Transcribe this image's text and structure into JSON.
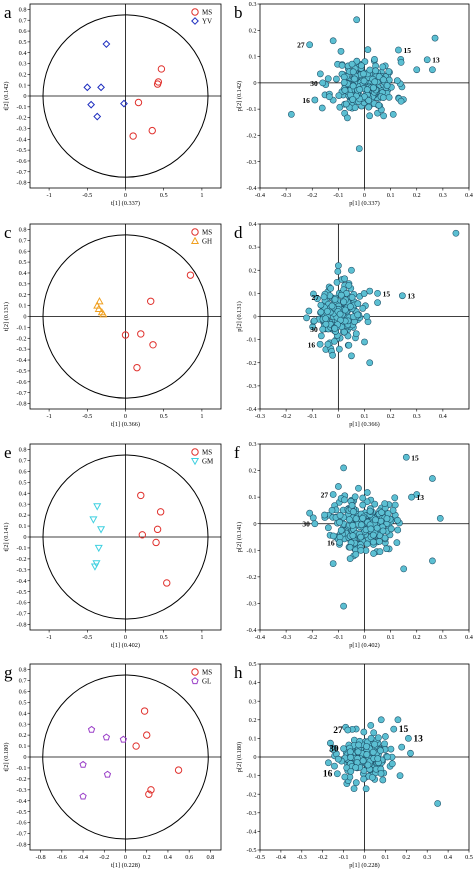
{
  "colors": {
    "MS": "#e0312d",
    "YV": "#1f2fbf",
    "GH": "#f0a020",
    "GM": "#3fd0e0",
    "GL": "#9a3fc8",
    "loading_fill": "#5bbfd2",
    "loading_edge": "#1d4e66"
  },
  "chart_data": [
    {
      "id": "a",
      "type": "scatter",
      "panel_letter": "a",
      "xlabel": "t[1] (0.337)",
      "ylabel": "t[2] (0.142)",
      "xlim": [
        -1.25,
        1.25
      ],
      "ylim": [
        -0.85,
        0.85
      ],
      "xticks": [
        -1,
        -0.5,
        0,
        0.5,
        1
      ],
      "xtick_labels": [
        "-1",
        "-0.5",
        "0",
        "0.5",
        "1"
      ],
      "yticks": [
        -0.8,
        -0.7,
        -0.6,
        -0.5,
        -0.4,
        -0.3,
        -0.2,
        -0.1,
        0,
        0.1,
        0.2,
        0.3,
        0.4,
        0.5,
        0.6,
        0.7,
        0.8
      ],
      "ytick_labels": [
        "-0.8",
        "-0.7",
        "-0.6",
        "-0.5",
        "-0.4",
        "-0.3",
        "-0.2",
        "-0.1",
        "0",
        "0.1",
        "0.2",
        "0.3",
        "0.4",
        "0.5",
        "0.6",
        "0.7",
        "0.8"
      ],
      "ellipse": {
        "rx": 1.08,
        "ry": 0.75
      },
      "legend": [
        {
          "name": "MS",
          "marker": "circle"
        },
        {
          "name": "YV",
          "marker": "diamond"
        }
      ],
      "series": [
        {
          "name": "MS",
          "marker": "circle",
          "x": [
            0.47,
            0.43,
            0.42,
            0.17,
            0.35,
            0.1
          ],
          "y": [
            0.25,
            0.13,
            0.11,
            -0.06,
            -0.32,
            -0.37
          ]
        },
        {
          "name": "YV",
          "marker": "diamond",
          "x": [
            -0.25,
            -0.5,
            -0.32,
            -0.45,
            -0.02,
            -0.37
          ],
          "y": [
            0.48,
            0.08,
            0.08,
            -0.08,
            -0.07,
            -0.19
          ]
        }
      ]
    },
    {
      "id": "b",
      "type": "scatter",
      "panel_letter": "b",
      "xlabel": "p[1] (0.337)",
      "ylabel": "p[2] (0.142)",
      "xlim": [
        -0.4,
        0.4
      ],
      "ylim": [
        -0.4,
        0.3
      ],
      "xticks": [
        -0.4,
        -0.3,
        -0.2,
        -0.1,
        0,
        0.1,
        0.2,
        0.3,
        0.4
      ],
      "xtick_labels": [
        "-0.4",
        "-0.3",
        "-0.2",
        "-0.1",
        "0",
        "0.1",
        "0.2",
        "0.3",
        "0.4"
      ],
      "yticks": [
        -0.4,
        -0.3,
        -0.2,
        -0.1,
        0,
        0.1,
        0.2,
        0.3
      ],
      "ytick_labels": [
        "-0.4",
        "-0.3",
        "-0.2",
        "-0.1",
        "0",
        "0.1",
        "0.2",
        "0.3"
      ],
      "cluster": {
        "cx": 0.0,
        "cy": -0.01,
        "sx": 0.06,
        "sy": 0.05,
        "n": 230,
        "seed": 11
      },
      "outliers": [
        [
          -0.03,
          0.24
        ],
        [
          0.27,
          0.17
        ],
        [
          0.26,
          0.05
        ],
        [
          -0.28,
          -0.12
        ],
        [
          -0.02,
          -0.25
        ],
        [
          0.2,
          0.05
        ],
        [
          -0.12,
          0.16
        ],
        [
          0.11,
          -0.12
        ],
        [
          0.14,
          -0.07
        ],
        [
          -0.09,
          0.12
        ]
      ],
      "labeled_points": [
        {
          "label": "27",
          "x": -0.21,
          "y": 0.145
        },
        {
          "label": "15",
          "x": 0.13,
          "y": 0.125
        },
        {
          "label": "13",
          "x": 0.24,
          "y": 0.088
        },
        {
          "label": "30",
          "x": -0.16,
          "y": 0.0
        },
        {
          "label": "16",
          "x": -0.19,
          "y": -0.065
        }
      ]
    },
    {
      "id": "c",
      "type": "scatter",
      "panel_letter": "c",
      "xlabel": "t[1] (0.366)",
      "ylabel": "t[2] (0.131)",
      "xlim": [
        -1.25,
        1.25
      ],
      "ylim": [
        -0.85,
        0.85
      ],
      "xticks": [
        -1,
        -0.5,
        0,
        0.5,
        1
      ],
      "xtick_labels": [
        "-1",
        "-0.5",
        "0",
        "0.5",
        "1"
      ],
      "yticks": [
        -0.8,
        -0.7,
        -0.6,
        -0.5,
        -0.4,
        -0.3,
        -0.2,
        -0.1,
        0,
        0.1,
        0.2,
        0.3,
        0.4,
        0.5,
        0.6,
        0.7,
        0.8
      ],
      "ytick_labels": [
        "-0.8",
        "-0.7",
        "-0.6",
        "-0.5",
        "-0.4",
        "-0.3",
        "-0.2",
        "-0.1",
        "0",
        "0.1",
        "0.2",
        "0.3",
        "0.4",
        "0.5",
        "0.6",
        "0.7",
        "0.8"
      ],
      "ellipse": {
        "rx": 1.08,
        "ry": 0.75
      },
      "legend": [
        {
          "name": "MS",
          "marker": "circle"
        },
        {
          "name": "GH",
          "marker": "triangle"
        }
      ],
      "series": [
        {
          "name": "MS",
          "marker": "circle",
          "x": [
            0.85,
            0.33,
            0.0,
            0.2,
            0.36,
            0.15
          ],
          "y": [
            0.38,
            0.14,
            -0.17,
            -0.16,
            -0.26,
            -0.47
          ]
        },
        {
          "name": "GH",
          "marker": "triangle",
          "x": [
            -0.34,
            -0.37,
            -0.35,
            -0.31,
            -0.29
          ],
          "y": [
            0.14,
            0.1,
            0.07,
            0.04,
            0.02
          ]
        }
      ]
    },
    {
      "id": "d",
      "type": "scatter",
      "panel_letter": "d",
      "xlabel": "p[1] (0.366)",
      "ylabel": "p[2] (0.131)",
      "xlim": [
        -0.3,
        0.5
      ],
      "ylim": [
        -0.4,
        0.4
      ],
      "xticks": [
        -0.3,
        -0.2,
        -0.1,
        0,
        0.1,
        0.2,
        0.3,
        0.4
      ],
      "xtick_labels": [
        "-0.3",
        "-0.2",
        "-0.1",
        "0",
        "0.1",
        "0.2",
        "0.3",
        "0.4"
      ],
      "yticks": [
        -0.4,
        -0.3,
        -0.2,
        -0.1,
        0,
        0.1,
        0.2,
        0.3,
        0.4
      ],
      "ytick_labels": [
        "-0.4",
        "-0.3",
        "-0.2",
        "-0.1",
        "0",
        "0.1",
        "0.2",
        "0.3",
        "0.4"
      ],
      "cluster": {
        "cx": 0.0,
        "cy": 0.01,
        "sx": 0.045,
        "sy": 0.06,
        "n": 190,
        "seed": 23
      },
      "outliers": [
        [
          0.45,
          0.36
        ],
        [
          0.0,
          0.22
        ],
        [
          0.05,
          0.2
        ],
        [
          0.12,
          0.11
        ],
        [
          0.1,
          -0.11
        ],
        [
          0.12,
          -0.2
        ],
        [
          -0.04,
          -0.12
        ],
        [
          0.05,
          -0.17
        ],
        [
          0.15,
          0.06
        ]
      ],
      "labeled_points": [
        {
          "label": "27",
          "x": -0.055,
          "y": 0.085
        },
        {
          "label": "15",
          "x": 0.15,
          "y": 0.1
        },
        {
          "label": "13",
          "x": 0.245,
          "y": 0.09
        },
        {
          "label": "30",
          "x": -0.06,
          "y": -0.055
        },
        {
          "label": "16",
          "x": -0.07,
          "y": -0.12
        }
      ]
    },
    {
      "id": "e",
      "type": "scatter",
      "panel_letter": "e",
      "xlabel": "t[1] (0.402)",
      "ylabel": "t[2] (0.141)",
      "xlim": [
        -1.25,
        1.25
      ],
      "ylim": [
        -0.85,
        0.85
      ],
      "xticks": [
        -1,
        -0.5,
        0,
        0.5,
        1
      ],
      "xtick_labels": [
        "-1",
        "-0.5",
        "0",
        "0.5",
        "1"
      ],
      "yticks": [
        -0.8,
        -0.7,
        -0.6,
        -0.5,
        -0.4,
        -0.3,
        -0.2,
        -0.1,
        0,
        0.1,
        0.2,
        0.3,
        0.4,
        0.5,
        0.6,
        0.7,
        0.8
      ],
      "ytick_labels": [
        "-0.8",
        "-0.7",
        "-0.6",
        "-0.5",
        "-0.4",
        "-0.3",
        "-0.2",
        "-0.1",
        "0",
        "0.1",
        "0.2",
        "0.3",
        "0.4",
        "0.5",
        "0.6",
        "0.7",
        "0.8"
      ],
      "ellipse": {
        "rx": 1.08,
        "ry": 0.75
      },
      "legend": [
        {
          "name": "MS",
          "marker": "circle"
        },
        {
          "name": "GM",
          "marker": "triangle-down"
        }
      ],
      "series": [
        {
          "name": "MS",
          "marker": "circle",
          "x": [
            0.2,
            0.46,
            0.42,
            0.22,
            0.4,
            0.54
          ],
          "y": [
            0.38,
            0.23,
            0.07,
            0.02,
            -0.05,
            -0.42
          ]
        },
        {
          "name": "GM",
          "marker": "triangle-down",
          "x": [
            -0.37,
            -0.42,
            -0.32,
            -0.35,
            -0.38,
            -0.4
          ],
          "y": [
            0.28,
            0.16,
            0.07,
            -0.1,
            -0.24,
            -0.27
          ]
        }
      ]
    },
    {
      "id": "f",
      "type": "scatter",
      "panel_letter": "f",
      "xlabel": "p[1] (0.402)",
      "ylabel": "p[2] (0.141)",
      "xlim": [
        -0.4,
        0.4
      ],
      "ylim": [
        -0.4,
        0.3
      ],
      "xticks": [
        -0.4,
        -0.3,
        -0.2,
        -0.1,
        0,
        0.1,
        0.2,
        0.3,
        0.4
      ],
      "xtick_labels": [
        "-0.4",
        "-0.3",
        "-0.2",
        "-0.1",
        "0",
        "0.1",
        "0.2",
        "0.3",
        "0.4"
      ],
      "yticks": [
        -0.4,
        -0.3,
        -0.2,
        -0.1,
        0,
        0.1,
        0.2,
        0.3
      ],
      "ytick_labels": [
        "-0.4",
        "-0.3",
        "-0.2",
        "-0.1",
        "0",
        "0.1",
        "0.2",
        "0.3"
      ],
      "cluster": {
        "cx": -0.01,
        "cy": 0.0,
        "sx": 0.06,
        "sy": 0.055,
        "n": 240,
        "seed": 37
      },
      "outliers": [
        [
          0.29,
          0.02
        ],
        [
          0.26,
          0.17
        ],
        [
          0.26,
          -0.14
        ],
        [
          -0.08,
          0.21
        ],
        [
          -0.08,
          -0.31
        ],
        [
          0.2,
          0.11
        ],
        [
          -0.21,
          0.04
        ],
        [
          -0.12,
          -0.15
        ],
        [
          0.15,
          -0.17
        ],
        [
          -0.1,
          0.14
        ]
      ],
      "labeled_points": [
        {
          "label": "15",
          "x": 0.16,
          "y": 0.25
        },
        {
          "label": "27",
          "x": -0.12,
          "y": 0.11
        },
        {
          "label": "13",
          "x": 0.18,
          "y": 0.1
        },
        {
          "label": "30",
          "x": -0.19,
          "y": 0.0
        },
        {
          "label": "16",
          "x": -0.095,
          "y": -0.07
        }
      ]
    },
    {
      "id": "g",
      "type": "scatter",
      "panel_letter": "g",
      "xlabel": "t[1] (0.228)",
      "ylabel": "t[2] (0.180)",
      "xlim": [
        -0.9,
        0.9
      ],
      "ylim": [
        -0.85,
        0.85
      ],
      "xticks": [
        -0.8,
        -0.6,
        -0.4,
        -0.2,
        0,
        0.2,
        0.4,
        0.6,
        0.8
      ],
      "xtick_labels": [
        "-0.8",
        "-0.6",
        "-0.4",
        "-0.2",
        "0",
        "0.2",
        "0.4",
        "0.6",
        "0.8"
      ],
      "yticks": [
        -0.8,
        -0.7,
        -0.6,
        -0.5,
        -0.4,
        -0.3,
        -0.2,
        -0.1,
        0,
        0.1,
        0.2,
        0.3,
        0.4,
        0.5,
        0.6,
        0.7,
        0.8
      ],
      "ytick_labels": [
        "-0.8",
        "-0.7",
        "-0.6",
        "-0.5",
        "-0.4",
        "-0.3",
        "-0.2",
        "-0.1",
        "0",
        "0.1",
        "0.2",
        "0.3",
        "0.4",
        "0.5",
        "0.6",
        "0.7",
        "0.8"
      ],
      "ellipse": {
        "rx": 0.78,
        "ry": 0.75
      },
      "legend": [
        {
          "name": "MS",
          "marker": "circle"
        },
        {
          "name": "GL",
          "marker": "pentagon"
        }
      ],
      "series": [
        {
          "name": "MS",
          "marker": "circle",
          "x": [
            0.18,
            0.2,
            0.1,
            0.5,
            0.24,
            0.22
          ],
          "y": [
            0.42,
            0.2,
            0.1,
            -0.12,
            -0.3,
            -0.34
          ]
        },
        {
          "name": "GL",
          "marker": "pentagon",
          "x": [
            -0.32,
            -0.18,
            -0.02,
            -0.4,
            -0.17,
            -0.4
          ],
          "y": [
            0.25,
            0.18,
            0.16,
            -0.07,
            -0.16,
            -0.36
          ]
        }
      ]
    },
    {
      "id": "h",
      "type": "scatter",
      "panel_letter": "h",
      "xlabel": "p[1] (0.228)",
      "ylabel": "p[2] (0.180)",
      "xlim": [
        -0.5,
        0.5
      ],
      "ylim": [
        -0.5,
        0.5
      ],
      "xticks": [
        -0.5,
        -0.4,
        -0.3,
        -0.2,
        -0.1,
        0,
        0.1,
        0.2,
        0.3,
        0.4,
        0.5
      ],
      "xtick_labels": [
        "-0.5",
        "-0.4",
        "-0.3",
        "-0.2",
        "-0.1",
        "0",
        "0.1",
        "0.2",
        "0.3",
        "0.4",
        "0.5"
      ],
      "yticks": [
        -0.5,
        -0.4,
        -0.3,
        -0.2,
        -0.1,
        0,
        0.1,
        0.2,
        0.3,
        0.4,
        0.5
      ],
      "ytick_labels": [
        "-0.5",
        "-0.4",
        "-0.3",
        "-0.2",
        "-0.1",
        "0",
        "0.1",
        "0.2",
        "0.3",
        "0.4",
        "0.5"
      ],
      "cluster": {
        "cx": 0.0,
        "cy": 0.0,
        "sx": 0.065,
        "sy": 0.06,
        "n": 210,
        "seed": 53
      },
      "outliers": [
        [
          0.35,
          -0.25
        ],
        [
          0.16,
          0.2
        ],
        [
          0.08,
          0.2
        ],
        [
          -0.09,
          0.16
        ],
        [
          0.22,
          0.02
        ],
        [
          -0.15,
          0.04
        ],
        [
          0.17,
          -0.1
        ],
        [
          0.1,
          0.11
        ],
        [
          -0.05,
          -0.17
        ],
        [
          0.03,
          0.17
        ]
      ],
      "labeled_points": [
        {
          "label": "27",
          "x": -0.08,
          "y": 0.145
        },
        {
          "label": "15",
          "x": 0.14,
          "y": 0.15
        },
        {
          "label": "13",
          "x": 0.21,
          "y": 0.1
        },
        {
          "label": "30",
          "x": -0.1,
          "y": 0.045
        },
        {
          "label": "16",
          "x": -0.13,
          "y": -0.09
        }
      ]
    }
  ]
}
